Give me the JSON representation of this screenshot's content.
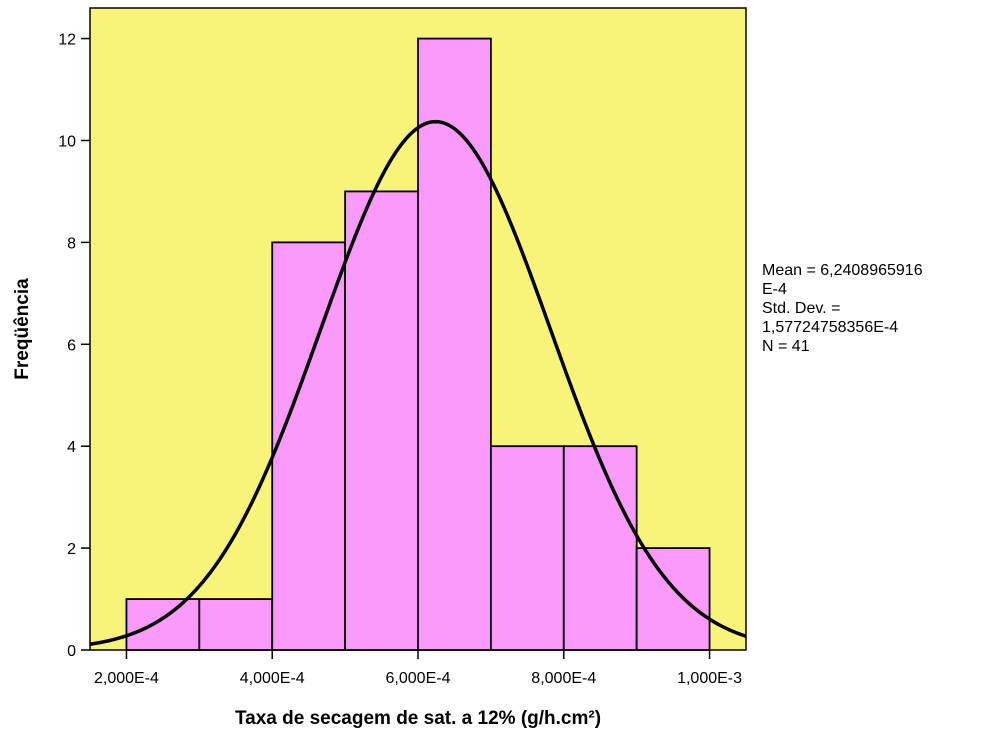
{
  "chart_data": {
    "type": "histogram",
    "xlabel": "Taxa de secagem de sat. a 12% (g/h.cm²)",
    "ylabel": "Freqüência",
    "xlim": [
      0.00015,
      0.00105
    ],
    "ylim": [
      0,
      12.6
    ],
    "bins": [
      {
        "from": 0.0002,
        "to": 0.0003,
        "count": 1
      },
      {
        "from": 0.0003,
        "to": 0.0004,
        "count": 1
      },
      {
        "from": 0.0004,
        "to": 0.0005,
        "count": 8
      },
      {
        "from": 0.0005,
        "to": 0.0006,
        "count": 9
      },
      {
        "from": 0.0006,
        "to": 0.0007,
        "count": 12
      },
      {
        "from": 0.0007,
        "to": 0.0008,
        "count": 4
      },
      {
        "from": 0.0008,
        "to": 0.0009,
        "count": 4
      },
      {
        "from": 0.0009,
        "to": 0.001,
        "count": 2
      }
    ],
    "xticks": [
      {
        "value": 0.0002,
        "label": "2,000E-4"
      },
      {
        "value": 0.0004,
        "label": "4,000E-4"
      },
      {
        "value": 0.0006,
        "label": "6,000E-4"
      },
      {
        "value": 0.0008,
        "label": "8,000E-4"
      },
      {
        "value": 0.001,
        "label": "1,000E-3"
      }
    ],
    "yticks": [
      {
        "value": 0,
        "label": "0"
      },
      {
        "value": 2,
        "label": "2"
      },
      {
        "value": 4,
        "label": "4"
      },
      {
        "value": 6,
        "label": "6"
      },
      {
        "value": 8,
        "label": "8"
      },
      {
        "value": 10,
        "label": "10"
      },
      {
        "value": 12,
        "label": "12"
      }
    ],
    "normal_curve": {
      "mean": 0.00062408965916,
      "std": 0.000157724758356,
      "n": 41,
      "bin_width": 0.0001
    },
    "stats_lines": [
      "Mean = 6,2408965916",
      "E-4",
      "Std. Dev. =",
      "1,57724758356E-4",
      "N = 41"
    ],
    "colors": {
      "background": "#f8f47a",
      "bar_fill": "#fa9afa",
      "bar_stroke": "#000000",
      "curve": "#000000"
    }
  }
}
